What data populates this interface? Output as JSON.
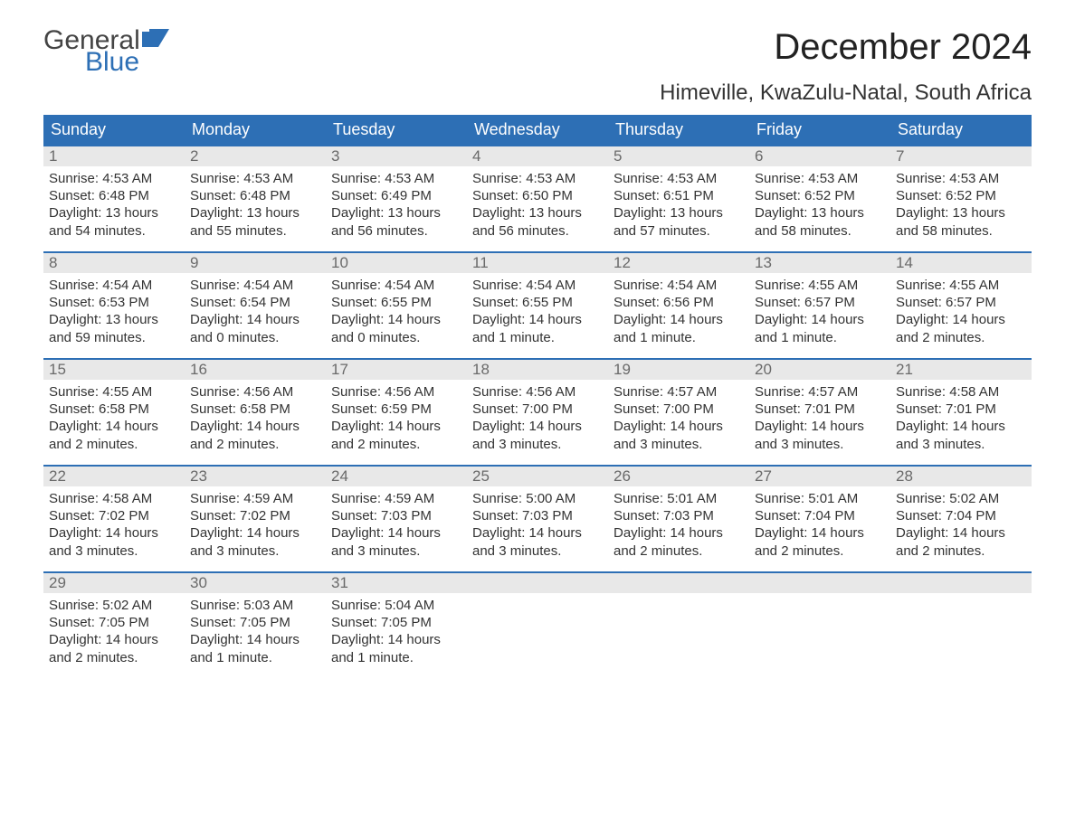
{
  "logo": {
    "word1": "General",
    "word2": "Blue",
    "flag_color": "#2d6fb5",
    "text_gray": "#444444"
  },
  "title": "December 2024",
  "location": "Himeville, KwaZulu-Natal, South Africa",
  "colors": {
    "header_bg": "#2d6fb5",
    "header_text": "#ffffff",
    "daynum_bg": "#e8e8e8",
    "daynum_text": "#6a6a6a",
    "body_text": "#333333",
    "week_border": "#2d6fb5",
    "page_bg": "#ffffff"
  },
  "type": "calendar-table",
  "day_labels": [
    "Sunday",
    "Monday",
    "Tuesday",
    "Wednesday",
    "Thursday",
    "Friday",
    "Saturday"
  ],
  "labels": {
    "sunrise": "Sunrise:",
    "sunset": "Sunset:",
    "daylight": "Daylight:"
  },
  "weeks": [
    [
      {
        "n": "1",
        "sunrise": "4:53 AM",
        "sunset": "6:48 PM",
        "daylight1": "13 hours",
        "daylight2": "and 54 minutes."
      },
      {
        "n": "2",
        "sunrise": "4:53 AM",
        "sunset": "6:48 PM",
        "daylight1": "13 hours",
        "daylight2": "and 55 minutes."
      },
      {
        "n": "3",
        "sunrise": "4:53 AM",
        "sunset": "6:49 PM",
        "daylight1": "13 hours",
        "daylight2": "and 56 minutes."
      },
      {
        "n": "4",
        "sunrise": "4:53 AM",
        "sunset": "6:50 PM",
        "daylight1": "13 hours",
        "daylight2": "and 56 minutes."
      },
      {
        "n": "5",
        "sunrise": "4:53 AM",
        "sunset": "6:51 PM",
        "daylight1": "13 hours",
        "daylight2": "and 57 minutes."
      },
      {
        "n": "6",
        "sunrise": "4:53 AM",
        "sunset": "6:52 PM",
        "daylight1": "13 hours",
        "daylight2": "and 58 minutes."
      },
      {
        "n": "7",
        "sunrise": "4:53 AM",
        "sunset": "6:52 PM",
        "daylight1": "13 hours",
        "daylight2": "and 58 minutes."
      }
    ],
    [
      {
        "n": "8",
        "sunrise": "4:54 AM",
        "sunset": "6:53 PM",
        "daylight1": "13 hours",
        "daylight2": "and 59 minutes."
      },
      {
        "n": "9",
        "sunrise": "4:54 AM",
        "sunset": "6:54 PM",
        "daylight1": "14 hours",
        "daylight2": "and 0 minutes."
      },
      {
        "n": "10",
        "sunrise": "4:54 AM",
        "sunset": "6:55 PM",
        "daylight1": "14 hours",
        "daylight2": "and 0 minutes."
      },
      {
        "n": "11",
        "sunrise": "4:54 AM",
        "sunset": "6:55 PM",
        "daylight1": "14 hours",
        "daylight2": "and 1 minute."
      },
      {
        "n": "12",
        "sunrise": "4:54 AM",
        "sunset": "6:56 PM",
        "daylight1": "14 hours",
        "daylight2": "and 1 minute."
      },
      {
        "n": "13",
        "sunrise": "4:55 AM",
        "sunset": "6:57 PM",
        "daylight1": "14 hours",
        "daylight2": "and 1 minute."
      },
      {
        "n": "14",
        "sunrise": "4:55 AM",
        "sunset": "6:57 PM",
        "daylight1": "14 hours",
        "daylight2": "and 2 minutes."
      }
    ],
    [
      {
        "n": "15",
        "sunrise": "4:55 AM",
        "sunset": "6:58 PM",
        "daylight1": "14 hours",
        "daylight2": "and 2 minutes."
      },
      {
        "n": "16",
        "sunrise": "4:56 AM",
        "sunset": "6:58 PM",
        "daylight1": "14 hours",
        "daylight2": "and 2 minutes."
      },
      {
        "n": "17",
        "sunrise": "4:56 AM",
        "sunset": "6:59 PM",
        "daylight1": "14 hours",
        "daylight2": "and 2 minutes."
      },
      {
        "n": "18",
        "sunrise": "4:56 AM",
        "sunset": "7:00 PM",
        "daylight1": "14 hours",
        "daylight2": "and 3 minutes."
      },
      {
        "n": "19",
        "sunrise": "4:57 AM",
        "sunset": "7:00 PM",
        "daylight1": "14 hours",
        "daylight2": "and 3 minutes."
      },
      {
        "n": "20",
        "sunrise": "4:57 AM",
        "sunset": "7:01 PM",
        "daylight1": "14 hours",
        "daylight2": "and 3 minutes."
      },
      {
        "n": "21",
        "sunrise": "4:58 AM",
        "sunset": "7:01 PM",
        "daylight1": "14 hours",
        "daylight2": "and 3 minutes."
      }
    ],
    [
      {
        "n": "22",
        "sunrise": "4:58 AM",
        "sunset": "7:02 PM",
        "daylight1": "14 hours",
        "daylight2": "and 3 minutes."
      },
      {
        "n": "23",
        "sunrise": "4:59 AM",
        "sunset": "7:02 PM",
        "daylight1": "14 hours",
        "daylight2": "and 3 minutes."
      },
      {
        "n": "24",
        "sunrise": "4:59 AM",
        "sunset": "7:03 PM",
        "daylight1": "14 hours",
        "daylight2": "and 3 minutes."
      },
      {
        "n": "25",
        "sunrise": "5:00 AM",
        "sunset": "7:03 PM",
        "daylight1": "14 hours",
        "daylight2": "and 3 minutes."
      },
      {
        "n": "26",
        "sunrise": "5:01 AM",
        "sunset": "7:03 PM",
        "daylight1": "14 hours",
        "daylight2": "and 2 minutes."
      },
      {
        "n": "27",
        "sunrise": "5:01 AM",
        "sunset": "7:04 PM",
        "daylight1": "14 hours",
        "daylight2": "and 2 minutes."
      },
      {
        "n": "28",
        "sunrise": "5:02 AM",
        "sunset": "7:04 PM",
        "daylight1": "14 hours",
        "daylight2": "and 2 minutes."
      }
    ],
    [
      {
        "n": "29",
        "sunrise": "5:02 AM",
        "sunset": "7:05 PM",
        "daylight1": "14 hours",
        "daylight2": "and 2 minutes."
      },
      {
        "n": "30",
        "sunrise": "5:03 AM",
        "sunset": "7:05 PM",
        "daylight1": "14 hours",
        "daylight2": "and 1 minute."
      },
      {
        "n": "31",
        "sunrise": "5:04 AM",
        "sunset": "7:05 PM",
        "daylight1": "14 hours",
        "daylight2": "and 1 minute."
      },
      {
        "empty": true
      },
      {
        "empty": true
      },
      {
        "empty": true
      },
      {
        "empty": true
      }
    ]
  ]
}
